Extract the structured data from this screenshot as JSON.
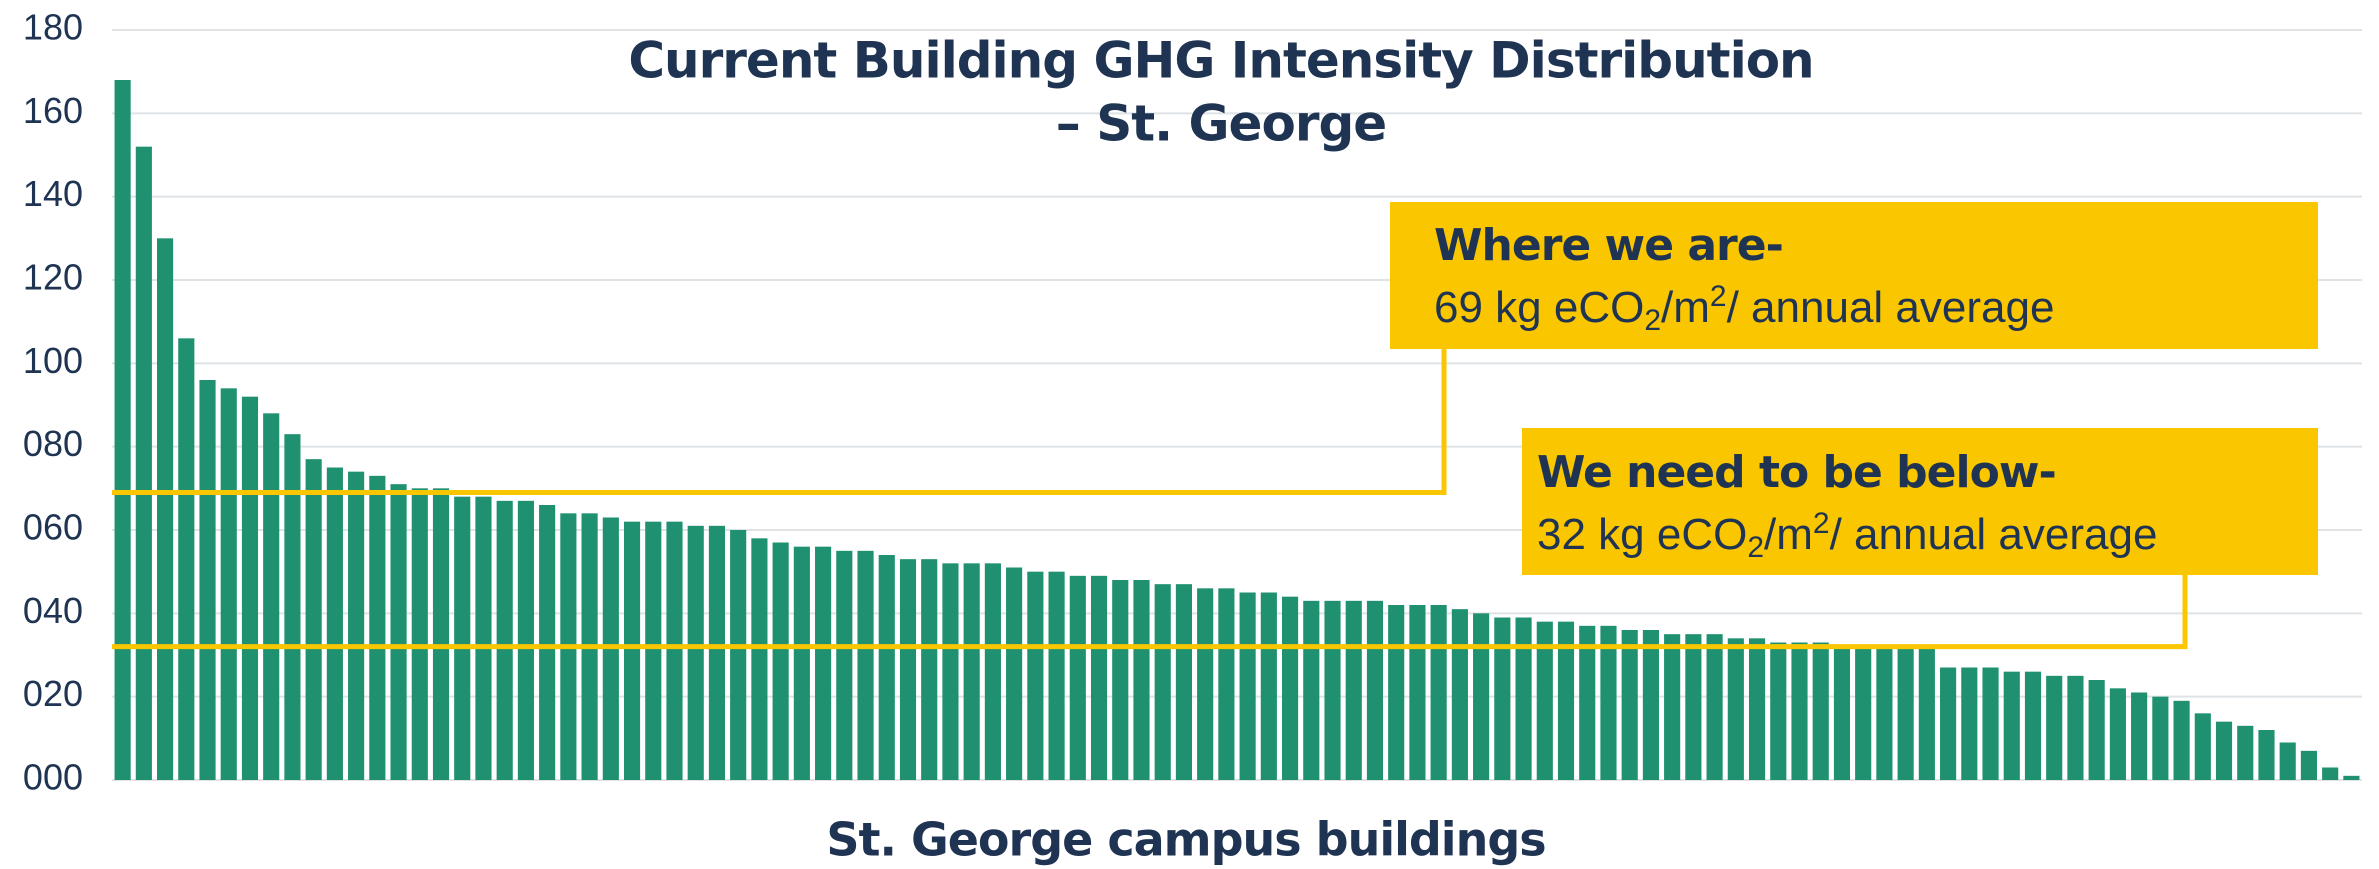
{
  "chart_data": {
    "type": "bar",
    "title": [
      "Current Building GHG Intensity Distribution",
      "– St. George"
    ],
    "x_label": "St. George campus buildings",
    "color": "#1f9070",
    "values": [
      168,
      152,
      130,
      106,
      96,
      94,
      92,
      88,
      83,
      77,
      75,
      74,
      73,
      71,
      70,
      70,
      68,
      68,
      67,
      67,
      66,
      64,
      64,
      63,
      62,
      62,
      62,
      61,
      61,
      60,
      58,
      57,
      56,
      56,
      55,
      55,
      54,
      53,
      53,
      52,
      52,
      52,
      51,
      50,
      50,
      49,
      49,
      48,
      48,
      47,
      47,
      46,
      46,
      45,
      45,
      44,
      43,
      43,
      43,
      43,
      42,
      42,
      42,
      41,
      40,
      39,
      39,
      38,
      38,
      37,
      37,
      36,
      36,
      35,
      35,
      35,
      34,
      34,
      33,
      33,
      33,
      32,
      32,
      32,
      32,
      32,
      27,
      27,
      27,
      26,
      26,
      25,
      25,
      24,
      22,
      21,
      20,
      19,
      16,
      14,
      13,
      12,
      9,
      7,
      3,
      1
    ],
    "ylim": [
      0,
      180
    ],
    "yticks": [
      {
        "value": 0,
        "label": "000"
      },
      {
        "value": 20,
        "label": "020"
      },
      {
        "value": 40,
        "label": "040"
      },
      {
        "value": 60,
        "label": "060"
      },
      {
        "value": 80,
        "label": "080"
      },
      {
        "value": 100,
        "label": "100"
      },
      {
        "value": 120,
        "label": "120"
      },
      {
        "value": 140,
        "label": "140"
      },
      {
        "value": 160,
        "label": "160"
      },
      {
        "value": 180,
        "label": "180"
      }
    ],
    "grid": true,
    "annotations": [
      {
        "heading": "Where we are-",
        "text": [
          "69 kg eCO",
          "2",
          "/m",
          "2",
          "/ annual average"
        ],
        "value": 69,
        "color": "#f9c600"
      },
      {
        "heading": "We need to be below-",
        "text": [
          "32 kg eCO",
          "2",
          "/m",
          "2",
          "/ annual average"
        ],
        "value": 32,
        "color": "#f9c600"
      }
    ]
  }
}
